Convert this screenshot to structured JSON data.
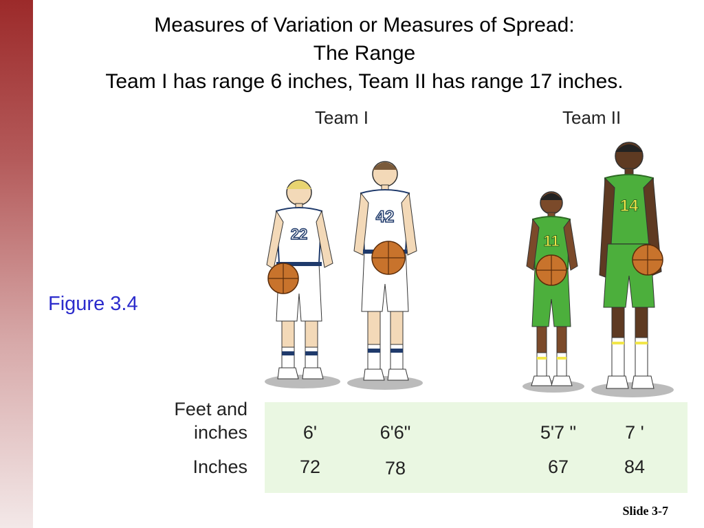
{
  "slide": {
    "title_lines": [
      "Measures of Variation or Measures of Spread:",
      "The Range",
      "Team I has range 6 inches, Team II has range 17 inches."
    ],
    "figure_label": "Figure 3.4",
    "slide_number": "Slide 3-7"
  },
  "illustration": {
    "teams": [
      {
        "name": "Team I",
        "jersey_color": "#ffffff",
        "trim_color": "#1f3a6b",
        "players": [
          {
            "number": "22"
          },
          {
            "number": "42"
          }
        ]
      },
      {
        "name": "Team II",
        "jersey_color": "#4caf3c",
        "trim_color": "#f2e64a",
        "players": [
          {
            "number": "11"
          },
          {
            "number": "14"
          }
        ]
      }
    ]
  },
  "table": {
    "row_labels": {
      "feet_line1": "Feet and",
      "feet_line2": "inches",
      "inches": "Inches"
    },
    "feet_inches": [
      "6'",
      "6'6\"",
      "5'7 \"",
      "7 '"
    ],
    "inches": [
      "72",
      "78",
      "67",
      "84"
    ],
    "background_color": "#eaf7e2"
  }
}
